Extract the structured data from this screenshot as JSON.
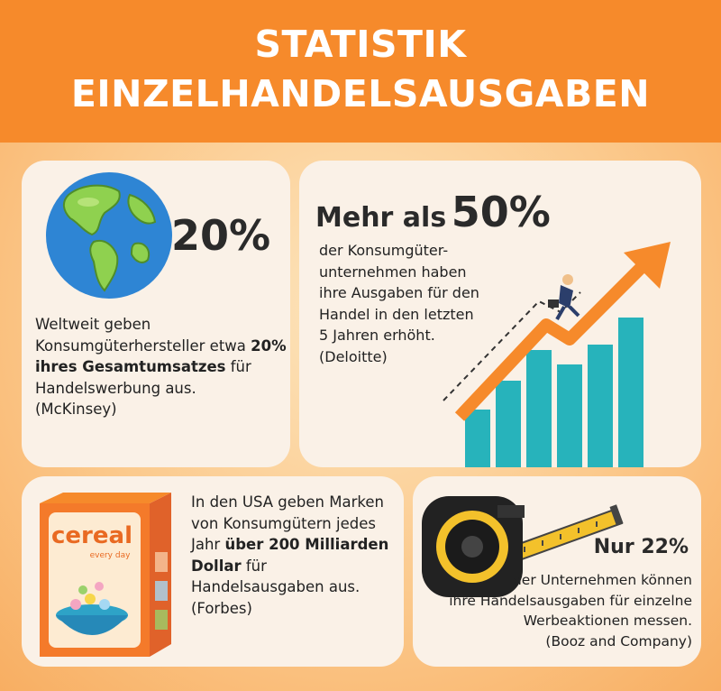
{
  "header": {
    "title_line1": "STATISTIK",
    "title_line2": "EINZELHANDELSAUSGABEN"
  },
  "card1": {
    "percent": "20%",
    "text_1": "Weltweit geben Konsumgüterhersteller etwa",
    "text_bold": "20% ihres Gesamtumsatzes",
    "text_2": "für Handelswerbung aus.",
    "source": "(McKinsey)"
  },
  "card2": {
    "headline_prefix": "Mehr als",
    "headline_value": "50%",
    "text_lines": [
      "der Konsumgüter-",
      "unternehmen haben",
      "ihre Ausgaben für den",
      "Handel in den letzten",
      "5 Jahren erhöht.",
      "(Deloitte)"
    ]
  },
  "card3": {
    "box_text": "cereal",
    "box_subtext": "every day",
    "text_1": "In den USA geben Marken von Konsumgütern jedes Jahr",
    "text_bold": "über 200 Milliarden Dollar",
    "text_2": "für Handelsausgaben aus.",
    "source": "(Forbes)"
  },
  "card4": {
    "headline": "Nur 22%",
    "text_lines": [
      "der Unternehmen können",
      "ihre Handelsausgaben für einzelne",
      "Werbeaktionen messen."
    ],
    "source": "(Booz and Company)"
  },
  "colors": {
    "orange": "#f68a2b",
    "teal": "#27b3bb",
    "card": "#faf1e7"
  }
}
